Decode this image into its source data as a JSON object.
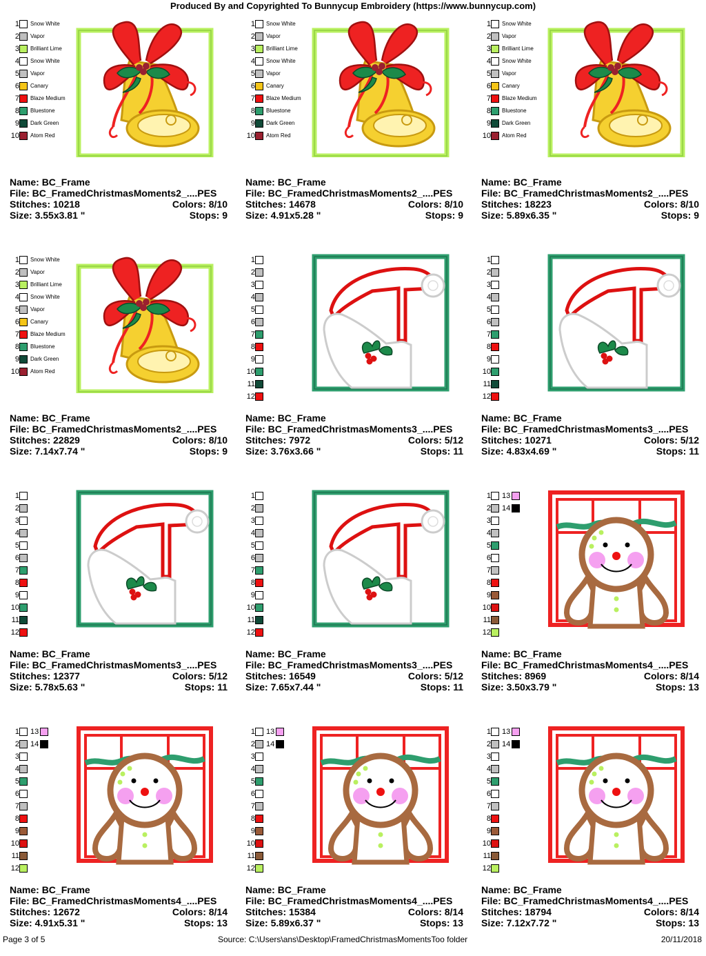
{
  "header": {
    "title": "Produced By and Copyrighted To Bunnycup Embroidery (https://www.bunnycup.com)"
  },
  "labels": {
    "name": "Name:",
    "file": "File:",
    "stitches": "Stitches:",
    "colors": "Colors:",
    "size": "Size:",
    "stops": "Stops:"
  },
  "palettes": {
    "bell": [
      {
        "n": "1",
        "name": "Snow White",
        "color": "#ffffff"
      },
      {
        "n": "2",
        "name": "Vapor",
        "color": "#c0c0c0"
      },
      {
        "n": "3",
        "name": "Brilliant Lime",
        "color": "#b9f060"
      },
      {
        "n": "4",
        "name": "Snow White",
        "color": "#ffffff"
      },
      {
        "n": "5",
        "name": "Vapor",
        "color": "#c0c0c0"
      },
      {
        "n": "6",
        "name": "Canary",
        "color": "#f5c518"
      },
      {
        "n": "7",
        "name": "Blaze Medium",
        "color": "#ee1111"
      },
      {
        "n": "8",
        "name": "Bluestone",
        "color": "#2e9e6e"
      },
      {
        "n": "9",
        "name": "Dark Green",
        "color": "#104a38"
      },
      {
        "n": "10",
        "name": "Atom Red",
        "color": "#9a2030"
      }
    ],
    "hat": [
      {
        "n": "1",
        "name": "",
        "color": "#ffffff"
      },
      {
        "n": "2",
        "name": "",
        "color": "#c0c0c0"
      },
      {
        "n": "3",
        "name": "",
        "color": "#ffffff"
      },
      {
        "n": "4",
        "name": "",
        "color": "#c0c0c0"
      },
      {
        "n": "5",
        "name": "",
        "color": "#ffffff"
      },
      {
        "n": "6",
        "name": "",
        "color": "#c0c0c0"
      },
      {
        "n": "7",
        "name": "",
        "color": "#2e9e6e"
      },
      {
        "n": "8",
        "name": "",
        "color": "#ee1111"
      },
      {
        "n": "9",
        "name": "",
        "color": "#ffffff"
      },
      {
        "n": "10",
        "name": "",
        "color": "#2e9e6e"
      },
      {
        "n": "11",
        "name": "",
        "color": "#104a38"
      },
      {
        "n": "12",
        "name": "",
        "color": "#ee1111"
      }
    ],
    "ginger": [
      {
        "n": "1",
        "name": "",
        "color": "#ffffff",
        "extra": {
          "n": "13",
          "color": "#f5a0f0"
        }
      },
      {
        "n": "2",
        "name": "",
        "color": "#c0c0c0",
        "extra": {
          "n": "14",
          "color": "#000000"
        }
      },
      {
        "n": "3",
        "name": "",
        "color": "#ffffff"
      },
      {
        "n": "4",
        "name": "",
        "color": "#c0c0c0"
      },
      {
        "n": "5",
        "name": "",
        "color": "#2e9e6e"
      },
      {
        "n": "6",
        "name": "",
        "color": "#ffffff"
      },
      {
        "n": "7",
        "name": "",
        "color": "#c0c0c0"
      },
      {
        "n": "8",
        "name": "",
        "color": "#ee1111"
      },
      {
        "n": "9",
        "name": "",
        "color": "#9a5a38"
      },
      {
        "n": "10",
        "name": "",
        "color": "#dd1111"
      },
      {
        "n": "11",
        "name": "",
        "color": "#8a5a38"
      },
      {
        "n": "12",
        "name": "",
        "color": "#b9f060"
      }
    ]
  },
  "designs": [
    {
      "type": "bell",
      "name": "BC_Frame",
      "file": "BC_FramedChristmasMoments2_....PES",
      "stitches": "10218",
      "colors": "8/10",
      "size": "3.55x3.81 \"",
      "stops": "9"
    },
    {
      "type": "bell",
      "name": "BC_Frame",
      "file": "BC_FramedChristmasMoments2_....PES",
      "stitches": "14678",
      "colors": "8/10",
      "size": "4.91x5.28 \"",
      "stops": "9"
    },
    {
      "type": "bell",
      "name": "BC_Frame",
      "file": "BC_FramedChristmasMoments2_....PES",
      "stitches": "18223",
      "colors": "8/10",
      "size": "5.89x6.35 \"",
      "stops": "9"
    },
    {
      "type": "bell",
      "name": "BC_Frame",
      "file": "BC_FramedChristmasMoments2_....PES",
      "stitches": "22829",
      "colors": "8/10",
      "size": "7.14x7.74 \"",
      "stops": "9"
    },
    {
      "type": "hat",
      "name": "BC_Frame",
      "file": "BC_FramedChristmasMoments3_....PES",
      "stitches": "7972",
      "colors": "5/12",
      "size": "3.76x3.66 \"",
      "stops": "11"
    },
    {
      "type": "hat",
      "name": "BC_Frame",
      "file": "BC_FramedChristmasMoments3_....PES",
      "stitches": "10271",
      "colors": "5/12",
      "size": "4.83x4.69 \"",
      "stops": "11"
    },
    {
      "type": "hat",
      "name": "BC_Frame",
      "file": "BC_FramedChristmasMoments3_....PES",
      "stitches": "12377",
      "colors": "5/12",
      "size": "5.78x5.63 \"",
      "stops": "11"
    },
    {
      "type": "hat",
      "name": "BC_Frame",
      "file": "BC_FramedChristmasMoments3_....PES",
      "stitches": "16549",
      "colors": "5/12",
      "size": "7.65x7.44 \"",
      "stops": "11"
    },
    {
      "type": "ginger",
      "name": "BC_Frame",
      "file": "BC_FramedChristmasMoments4_....PES",
      "stitches": "8969",
      "colors": "8/14",
      "size": "3.50x3.79 \"",
      "stops": "13"
    },
    {
      "type": "ginger",
      "name": "BC_Frame",
      "file": "BC_FramedChristmasMoments4_....PES",
      "stitches": "12672",
      "colors": "8/14",
      "size": "4.91x5.31 \"",
      "stops": "13"
    },
    {
      "type": "ginger",
      "name": "BC_Frame",
      "file": "BC_FramedChristmasMoments4_....PES",
      "stitches": "15384",
      "colors": "8/14",
      "size": "5.89x6.37 \"",
      "stops": "13"
    },
    {
      "type": "ginger",
      "name": "BC_Frame",
      "file": "BC_FramedChristmasMoments4_....PES",
      "stitches": "18794",
      "colors": "8/14",
      "size": "7.12x7.72 \"",
      "stops": "13"
    }
  ],
  "footer": {
    "page": "Page 3 of 5",
    "source": "Source: C:\\Users\\ans\\Desktop\\FramedChristmasMomentsToo folder",
    "date": "20/11/2018"
  }
}
